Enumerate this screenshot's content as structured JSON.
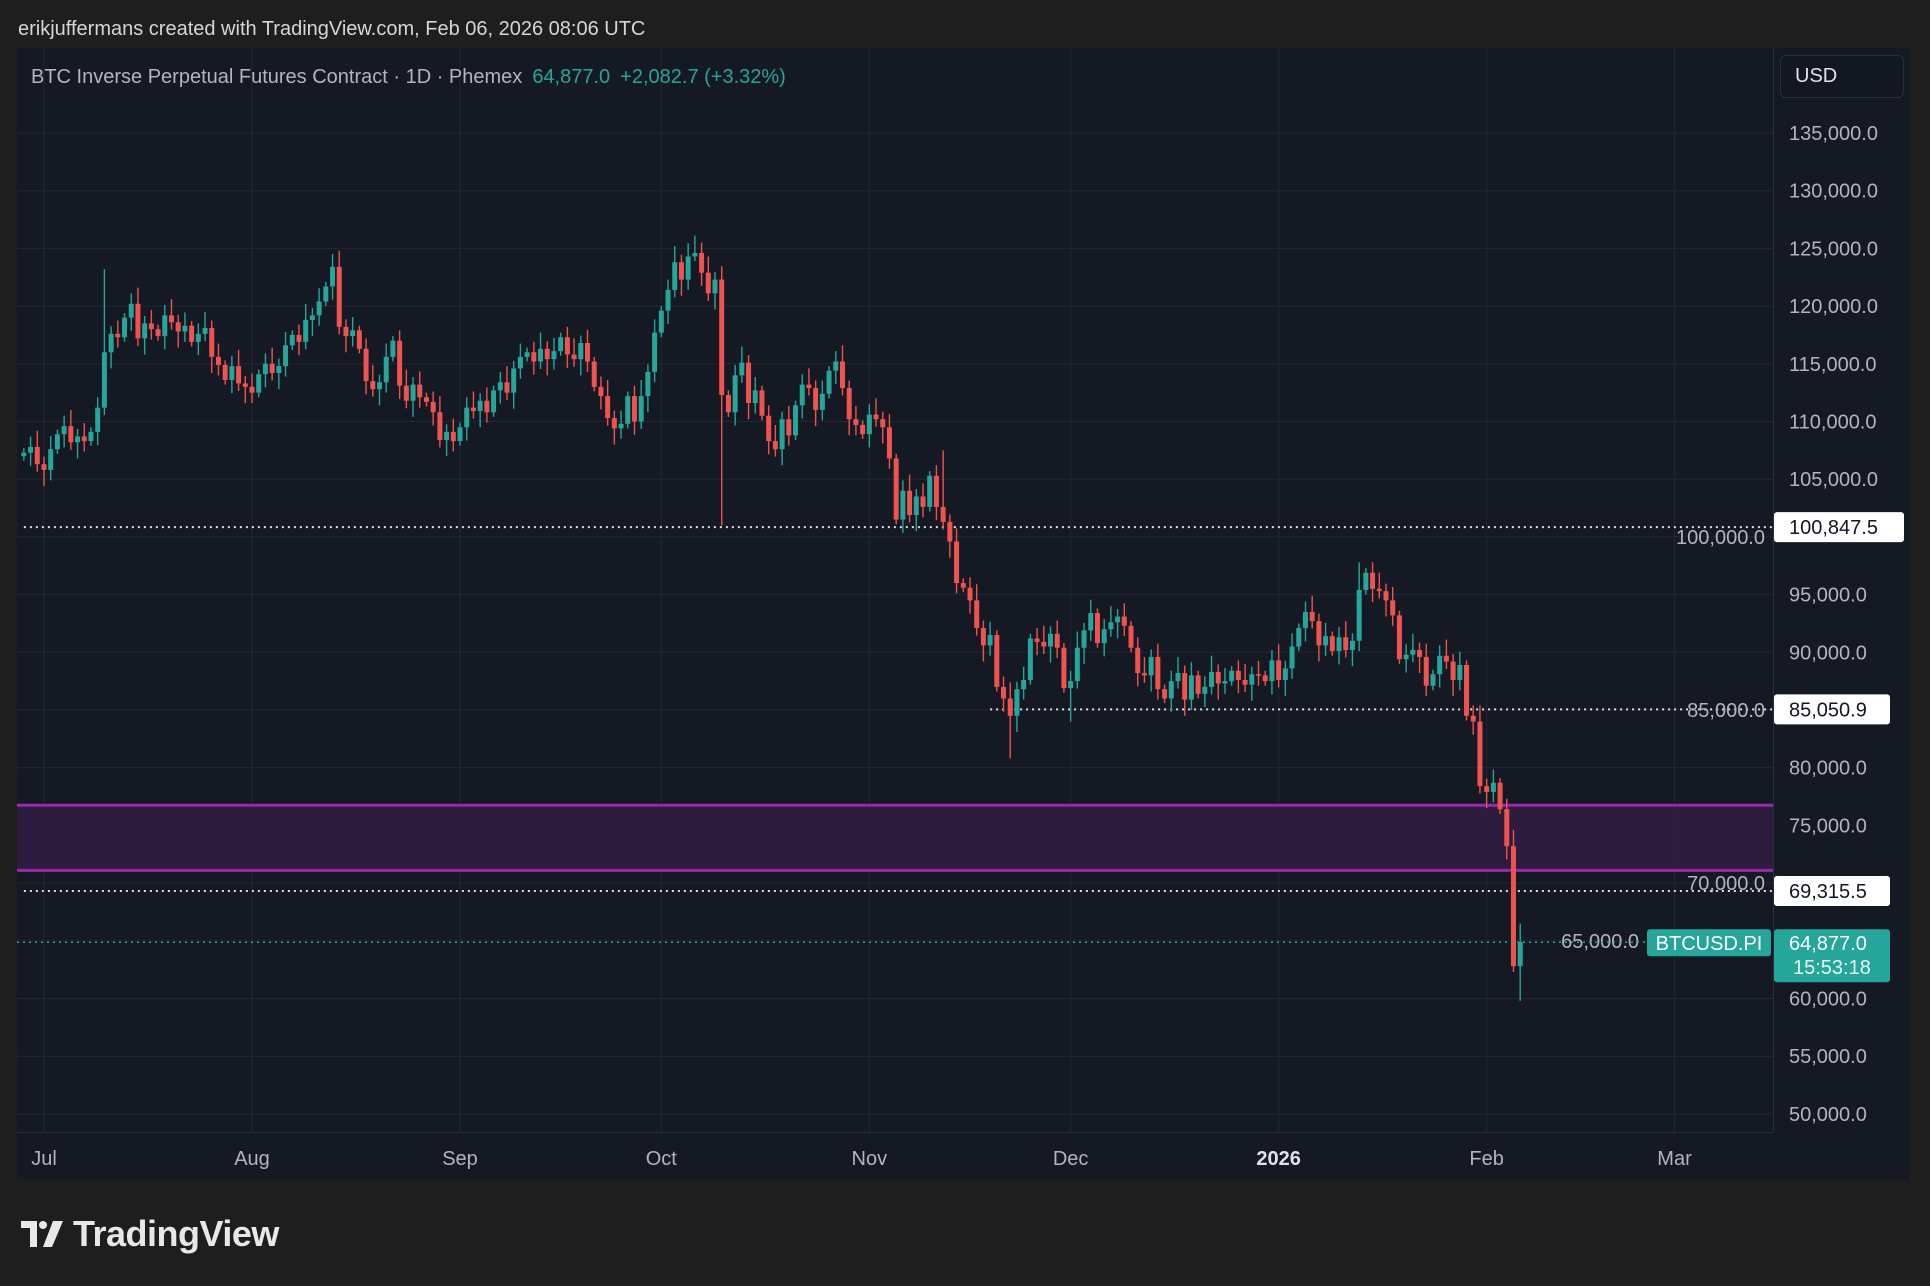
{
  "attribution": "erikjuffermans created with TradingView.com, Feb 06, 2026 08:06 UTC",
  "legend": {
    "title": "BTC Inverse Perpetual Futures Contract · 1D · Phemex",
    "last": "64,877.0",
    "change": "+2,082.7 (+3.32%)"
  },
  "currency": "USD",
  "brand": "TradingView",
  "colors": {
    "up": "#26a69a",
    "down": "#ef5350",
    "zone": "#9c27b0",
    "zone_fill": "#2f1c40"
  },
  "chart_data": {
    "type": "candlestick",
    "title": "BTC Inverse Perpetual Futures Contract · 1D · Phemex",
    "symbol": "BTCUSD.PI",
    "unit": "thousand USD",
    "start_day_offset_from_jul_1": -3,
    "ylim": [
      48000,
      138000
    ],
    "y_ticks": [
      "50,000.0",
      "55,000.0",
      "60,000.0",
      "65,000.0",
      "70,000.0",
      "75,000.0",
      "80,000.0",
      "85,000.0",
      "90,000.0",
      "95,000.0",
      "100,000.0",
      "105,000.0",
      "110,000.0",
      "115,000.0",
      "120,000.0",
      "125,000.0",
      "130,000.0",
      "135,000.0"
    ],
    "y_tick_values": [
      50000,
      55000,
      60000,
      65000,
      70000,
      75000,
      80000,
      85000,
      90000,
      95000,
      100000,
      105000,
      110000,
      115000,
      120000,
      125000,
      130000,
      135000
    ],
    "x_ticks": [
      {
        "label": "Jul",
        "day": 0,
        "bold": false
      },
      {
        "label": "Aug",
        "day": 31,
        "bold": false
      },
      {
        "label": "Sep",
        "day": 62,
        "bold": false
      },
      {
        "label": "Oct",
        "day": 92,
        "bold": false
      },
      {
        "label": "Nov",
        "day": 123,
        "bold": false
      },
      {
        "label": "Dec",
        "day": 153,
        "bold": false
      },
      {
        "label": "2026",
        "day": 184,
        "bold": true
      },
      {
        "label": "Feb",
        "day": 215,
        "bold": false
      },
      {
        "label": "Mar",
        "day": 243,
        "bold": false
      }
    ],
    "first_open": 107.0,
    "closes": [
      107.3,
      107.8,
      106.3,
      105.8,
      107.6,
      108.9,
      109.6,
      108.2,
      108.7,
      108.3,
      109.1,
      111.2,
      116.0,
      117.6,
      117.3,
      119.0,
      120.2,
      117.2,
      118.5,
      118.0,
      117.4,
      119.2,
      118.6,
      117.8,
      118.3,
      116.9,
      117.6,
      118.1,
      115.6,
      114.9,
      113.6,
      114.8,
      113.3,
      113.0,
      112.5,
      114.1,
      115.0,
      114.2,
      114.8,
      116.6,
      117.5,
      116.9,
      118.8,
      119.2,
      120.4,
      121.7,
      123.4,
      118.2,
      117.4,
      117.9,
      116.3,
      113.5,
      112.8,
      113.4,
      115.6,
      117.0,
      113.1,
      111.8,
      113.2,
      112.1,
      111.7,
      110.8,
      108.4,
      109.1,
      108.3,
      109.5,
      111.2,
      110.9,
      111.8,
      110.8,
      112.7,
      113.4,
      112.5,
      114.6,
      115.6,
      116.0,
      115.2,
      116.3,
      115.4,
      116.1,
      117.3,
      115.8,
      115.4,
      116.8,
      115.2,
      113.0,
      112.2,
      110.3,
      109.4,
      109.8,
      112.2,
      110.0,
      112.2,
      114.3,
      117.7,
      119.6,
      121.4,
      123.8,
      122.3,
      124.3,
      124.6,
      122.9,
      121.1,
      122.3,
      112.3,
      110.8,
      114.0,
      115.1,
      111.6,
      112.7,
      110.5,
      108.3,
      107.6,
      110.2,
      108.8,
      111.4,
      113.2,
      112.9,
      111.0,
      112.4,
      114.4,
      115.2,
      112.9,
      110.2,
      109.7,
      108.9,
      110.6,
      110.2,
      109.5,
      106.8,
      101.5,
      104.0,
      101.9,
      103.5,
      102.6,
      105.3,
      102.6,
      101.3,
      99.6,
      96.0,
      95.6,
      94.5,
      92.1,
      90.6,
      91.5,
      87.0,
      86.0,
      84.5,
      86.8,
      87.6,
      91.2,
      90.9,
      90.5,
      91.6,
      90.4,
      86.9,
      87.5,
      90.4,
      91.9,
      93.4,
      90.8,
      92.0,
      92.6,
      93.1,
      92.3,
      90.4,
      88.2,
      88.0,
      89.6,
      86.8,
      86.0,
      87.5,
      88.2,
      85.9,
      88.0,
      86.4,
      87.0,
      88.3,
      87.3,
      87.5,
      88.4,
      87.6,
      87.2,
      88.1,
      88.0,
      87.5,
      89.3,
      87.6,
      88.6,
      90.5,
      92.1,
      93.5,
      92.7,
      90.6,
      91.4,
      90.1,
      91.3,
      90.2,
      91.0,
      95.4,
      96.9,
      95.5,
      95.3,
      94.5,
      93.2,
      89.4,
      89.8,
      90.2,
      89.6,
      87.1,
      88.1,
      89.7,
      89.2,
      87.6,
      88.9,
      84.5,
      84.0,
      78.4,
      77.9,
      78.7,
      76.4,
      73.2,
      62.8,
      64.9
    ],
    "notable_highs": {
      "12": 123.2,
      "46": 124.5,
      "100": 126.1,
      "137": 107.5,
      "199": 97.8,
      "223": 66.5
    },
    "notable_lows": {
      "104": 101.0,
      "147": 80.8,
      "156": 84.0,
      "222": 62.3,
      "223": 59.8
    },
    "horizontal_levels": [
      {
        "label": "100,847.5",
        "value": 100847.5,
        "from_day": -3
      },
      {
        "label": "85,050.9",
        "value": 85050.9,
        "from_day": 141
      },
      {
        "label": "69,315.5",
        "value": 69315.5,
        "from_day": -3
      }
    ],
    "zone": {
      "low": 71100,
      "high": 76750
    },
    "last_price": {
      "label": "64,877.0",
      "value": 64877.0,
      "countdown": "15:53:18",
      "symbol_label": "BTCUSD.PI"
    }
  }
}
